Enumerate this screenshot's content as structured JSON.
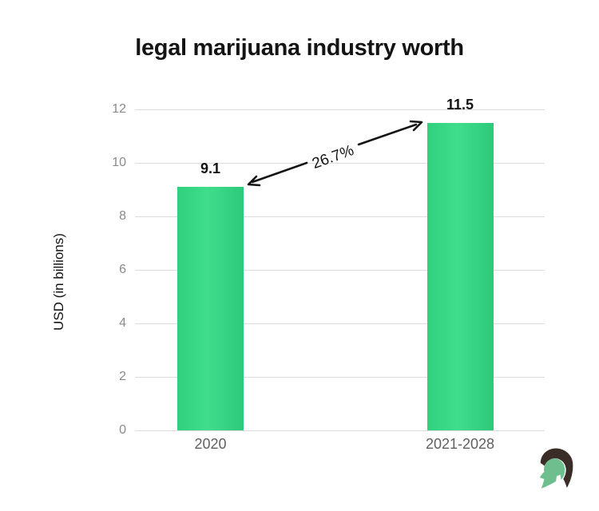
{
  "chart_data": {
    "type": "bar",
    "title": "legal marijuana industry worth",
    "categories": [
      "2020",
      "2021-2028"
    ],
    "values": [
      9.1,
      11.5
    ],
    "value_labels": [
      "9.1",
      "11.5"
    ],
    "xlabel": "",
    "ylabel": "USD (in billions)",
    "ylim": [
      0,
      12
    ],
    "ytick_step": 2,
    "yticks": [
      0,
      2,
      4,
      6,
      8,
      10,
      12
    ],
    "grid": true,
    "legend": false,
    "bar_color": "#30d07e",
    "annotation": {
      "text": "26.7%",
      "type": "double-headed-arrow",
      "from_category": "2020",
      "to_category": "2021-2028"
    }
  },
  "logo": {
    "name": "spartan-helmet-logo",
    "crest_color": "#3a2d28",
    "helmet_color": "#6fbe8d"
  }
}
